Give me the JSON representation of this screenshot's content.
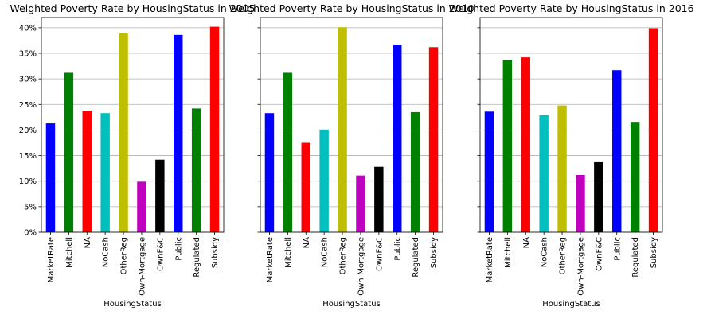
{
  "chart_data": [
    {
      "type": "bar",
      "title": "Weighted Poverty Rate by HousingStatus in 2005",
      "xlabel": "HousingStatus",
      "ylabel": "",
      "ylim": [
        0,
        0.42
      ],
      "yticks": [
        "0%",
        "5%",
        "10%",
        "15%",
        "20%",
        "25%",
        "30%",
        "35%",
        "40%"
      ],
      "grid": "horizontal",
      "categories": [
        "MarketRate",
        "Mitchell",
        "NA",
        "NoCash",
        "OtherReg",
        "Own-Mortgage",
        "OwnF&C",
        "Public",
        "Regulated",
        "Subsidy"
      ],
      "values": [
        0.213,
        0.312,
        0.238,
        0.233,
        0.389,
        0.099,
        0.142,
        0.386,
        0.242,
        0.402
      ],
      "colors": [
        "#0000ff",
        "#008000",
        "#ff0000",
        "#00bfbf",
        "#bfbf00",
        "#bf00bf",
        "#000000",
        "#0000ff",
        "#008000",
        "#ff0000"
      ]
    },
    {
      "type": "bar",
      "title": "Weighted Poverty Rate by HousingStatus in 2010",
      "xlabel": "HousingStatus",
      "ylabel": "",
      "ylim": [
        0,
        0.42
      ],
      "yticks": [
        "0%",
        "5%",
        "10%",
        "15%",
        "20%",
        "25%",
        "30%",
        "35%",
        "40%"
      ],
      "grid": "horizontal",
      "categories": [
        "MarketRate",
        "Mitchell",
        "NA",
        "NoCash",
        "OtherReg",
        "Own-Mortgage",
        "OwnF&C",
        "Public",
        "Regulated",
        "Subsidy"
      ],
      "values": [
        0.233,
        0.312,
        0.175,
        0.201,
        0.401,
        0.111,
        0.128,
        0.367,
        0.235,
        0.362
      ],
      "colors": [
        "#0000ff",
        "#008000",
        "#ff0000",
        "#00bfbf",
        "#bfbf00",
        "#bf00bf",
        "#000000",
        "#0000ff",
        "#008000",
        "#ff0000"
      ]
    },
    {
      "type": "bar",
      "title": "Weighted Poverty Rate by HousingStatus in 2016",
      "xlabel": "HousingStatus",
      "ylabel": "",
      "ylim": [
        0,
        0.42
      ],
      "yticks": [
        "0%",
        "5%",
        "10%",
        "15%",
        "20%",
        "25%",
        "30%",
        "35%",
        "40%"
      ],
      "grid": "horizontal",
      "categories": [
        "MarketRate",
        "Mitchell",
        "NA",
        "NoCash",
        "OtherReg",
        "Own-Mortgage",
        "OwnF&C",
        "Public",
        "Regulated",
        "Subsidy"
      ],
      "values": [
        0.236,
        0.337,
        0.342,
        0.229,
        0.248,
        0.112,
        0.137,
        0.317,
        0.216,
        0.399
      ],
      "colors": [
        "#0000ff",
        "#008000",
        "#ff0000",
        "#00bfbf",
        "#bfbf00",
        "#bf00bf",
        "#000000",
        "#0000ff",
        "#008000",
        "#ff0000"
      ]
    }
  ]
}
